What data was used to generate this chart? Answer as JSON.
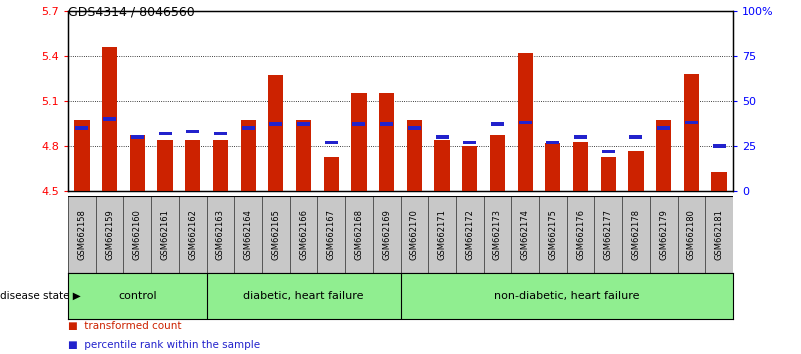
{
  "title": "GDS4314 / 8046560",
  "samples": [
    "GSM662158",
    "GSM662159",
    "GSM662160",
    "GSM662161",
    "GSM662162",
    "GSM662163",
    "GSM662164",
    "GSM662165",
    "GSM662166",
    "GSM662167",
    "GSM662168",
    "GSM662169",
    "GSM662170",
    "GSM662171",
    "GSM662172",
    "GSM662173",
    "GSM662174",
    "GSM662175",
    "GSM662176",
    "GSM662177",
    "GSM662178",
    "GSM662179",
    "GSM662180",
    "GSM662181"
  ],
  "transformed_count": [
    4.97,
    5.46,
    4.87,
    4.84,
    4.84,
    4.84,
    4.97,
    5.27,
    4.97,
    4.73,
    5.15,
    5.15,
    4.97,
    4.84,
    4.8,
    4.87,
    5.42,
    4.82,
    4.83,
    4.73,
    4.77,
    4.97,
    5.28,
    4.63
  ],
  "percentile_rank": [
    35,
    40,
    30,
    32,
    33,
    32,
    35,
    37,
    37,
    27,
    37,
    37,
    35,
    30,
    27,
    37,
    38,
    27,
    30,
    22,
    30,
    35,
    38,
    25
  ],
  "group_info": [
    {
      "label": "control",
      "start": 0,
      "end": 4
    },
    {
      "label": "diabetic, heart failure",
      "start": 5,
      "end": 11
    },
    {
      "label": "non-diabetic, heart failure",
      "start": 12,
      "end": 23
    }
  ],
  "group_dividers": [
    4.5,
    11.5
  ],
  "ylim_left": [
    4.5,
    5.7
  ],
  "ylim_right": [
    0,
    100
  ],
  "yticks_left": [
    4.5,
    4.8,
    5.1,
    5.4,
    5.7
  ],
  "yticks_right": [
    0,
    25,
    50,
    75,
    100
  ],
  "ytick_labels_left": [
    "4.5",
    "4.8",
    "5.1",
    "5.4",
    "5.7"
  ],
  "ytick_labels_right": [
    "0",
    "25",
    "50",
    "75",
    "100%"
  ],
  "bar_color": "#cc2200",
  "percentile_color": "#2222cc",
  "group_color": "#90ee90",
  "sample_bg_color": "#c8c8c8",
  "legend_items": [
    {
      "label": "transformed count",
      "color": "#cc2200"
    },
    {
      "label": "percentile rank within the sample",
      "color": "#2222cc"
    }
  ]
}
